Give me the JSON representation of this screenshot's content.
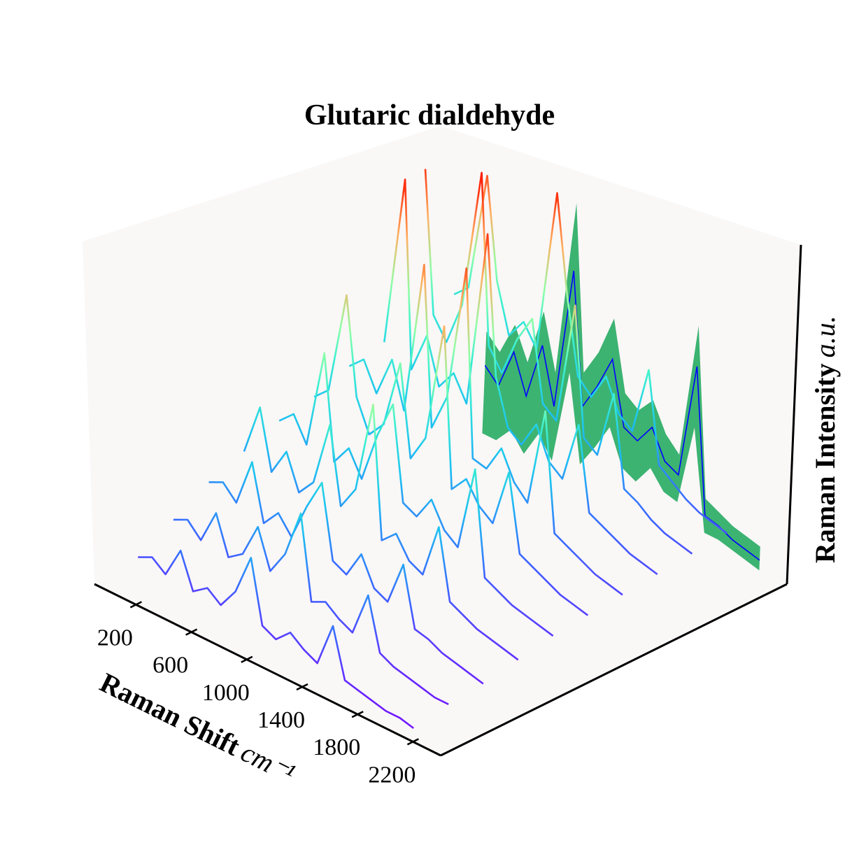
{
  "chart_data": {
    "type": "waterfall3d",
    "title": "Glutaric dialdehyde",
    "xlabel": "Raman Shift",
    "xunit": "cm⁻¹",
    "zlabel": "Raman Intensity",
    "zunit": "a.u.",
    "xlim": [
      -100,
      2400
    ],
    "xticks": [
      200,
      600,
      1000,
      1400,
      1800,
      2200
    ],
    "zlim": [
      0,
      1
    ],
    "colormap": "rainbow",
    "x": [
      200,
      300,
      400,
      500,
      600,
      700,
      800,
      900,
      1000,
      1100,
      1200,
      1300,
      1400,
      1500,
      1600,
      1700,
      1800,
      1900,
      2000,
      2100,
      2200
    ],
    "series": [
      {
        "values": [
          0.14,
          0.16,
          0.13,
          0.22,
          0.12,
          0.15,
          0.12,
          0.18,
          0.3,
          0.12,
          0.1,
          0.14,
          0.11,
          0.09,
          0.22,
          0.08,
          0.07,
          0.06,
          0.05,
          0.05,
          0.04
        ]
      },
      {
        "values": [
          0.2,
          0.22,
          0.18,
          0.28,
          0.17,
          0.2,
          0.3,
          0.19,
          0.26,
          0.4,
          0.16,
          0.18,
          0.15,
          0.13,
          0.26,
          0.11,
          0.09,
          0.08,
          0.07,
          0.06,
          0.06
        ]
      },
      {
        "values": [
          0.26,
          0.28,
          0.24,
          0.38,
          0.22,
          0.27,
          0.22,
          0.33,
          0.42,
          0.21,
          0.19,
          0.27,
          0.19,
          0.17,
          0.3,
          0.13,
          0.12,
          0.1,
          0.09,
          0.08,
          0.07
        ]
      },
      {
        "values": [
          0.3,
          0.45,
          0.28,
          0.36,
          0.26,
          0.31,
          0.5,
          0.28,
          0.35,
          0.62,
          0.24,
          0.28,
          0.22,
          0.2,
          0.36,
          0.16,
          0.14,
          0.12,
          0.11,
          0.1,
          0.09
        ]
      },
      {
        "values": [
          0.34,
          0.38,
          0.31,
          0.6,
          0.3,
          0.36,
          0.29,
          0.44,
          0.55,
          0.28,
          0.26,
          0.33,
          0.26,
          0.23,
          0.48,
          0.18,
          0.16,
          0.14,
          0.13,
          0.12,
          0.11
        ]
      },
      {
        "values": [
          0.36,
          0.4,
          0.7,
          0.42,
          0.33,
          0.38,
          0.58,
          0.32,
          0.4,
          0.75,
          0.29,
          0.34,
          0.28,
          0.25,
          0.42,
          0.2,
          0.18,
          0.16,
          0.14,
          0.13,
          0.12
        ]
      },
      {
        "values": [
          0.4,
          0.44,
          0.36,
          0.48,
          0.35,
          0.8,
          0.34,
          0.45,
          0.85,
          0.31,
          0.3,
          0.38,
          0.3,
          0.26,
          0.55,
          0.21,
          0.19,
          0.17,
          0.15,
          0.14,
          0.13
        ]
      },
      {
        "values": [
          0.42,
          0.92,
          0.38,
          0.5,
          0.37,
          0.43,
          0.36,
          0.88,
          0.48,
          0.35,
          0.32,
          0.4,
          0.31,
          0.28,
          0.46,
          0.22,
          0.2,
          0.18,
          0.16,
          0.15,
          0.14
        ]
      },
      {
        "values": [
          0.88,
          0.47,
          0.41,
          0.54,
          0.95,
          0.46,
          0.4,
          0.52,
          0.6,
          0.37,
          0.34,
          0.7,
          0.33,
          0.3,
          0.5,
          0.24,
          0.22,
          0.19,
          0.17,
          0.16,
          0.15
        ]
      },
      {
        "values": [
          0.46,
          0.5,
          0.85,
          0.56,
          0.42,
          0.48,
          0.42,
          0.9,
          0.62,
          0.4,
          0.36,
          0.44,
          0.35,
          0.32,
          0.52,
          0.26,
          0.23,
          0.2,
          0.18,
          0.17,
          0.16
        ]
      }
    ],
    "band": {
      "color": "#3cb371",
      "upper": [
        0.3,
        0.26,
        0.36,
        0.27,
        0.44,
        0.28,
        0.8,
        0.32,
        0.4,
        0.52,
        0.32,
        0.29,
        0.34,
        0.26,
        0.22,
        0.62,
        0.13,
        0.11,
        0.09,
        0.08,
        0.07
      ],
      "lower": [
        0.0,
        0.0,
        0.05,
        0.0,
        0.08,
        0.02,
        0.3,
        0.05,
        0.12,
        0.2,
        0.1,
        0.08,
        0.14,
        0.09,
        0.08,
        0.32,
        0.03,
        0.03,
        0.02,
        0.01,
        0.0
      ]
    },
    "mean": {
      "color": "#0000ff",
      "values": [
        0.2,
        0.16,
        0.28,
        0.17,
        0.34,
        0.18,
        0.6,
        0.22,
        0.3,
        0.4,
        0.22,
        0.2,
        0.26,
        0.18,
        0.16,
        0.5,
        0.08,
        0.07,
        0.05,
        0.04,
        0.03
      ]
    }
  }
}
